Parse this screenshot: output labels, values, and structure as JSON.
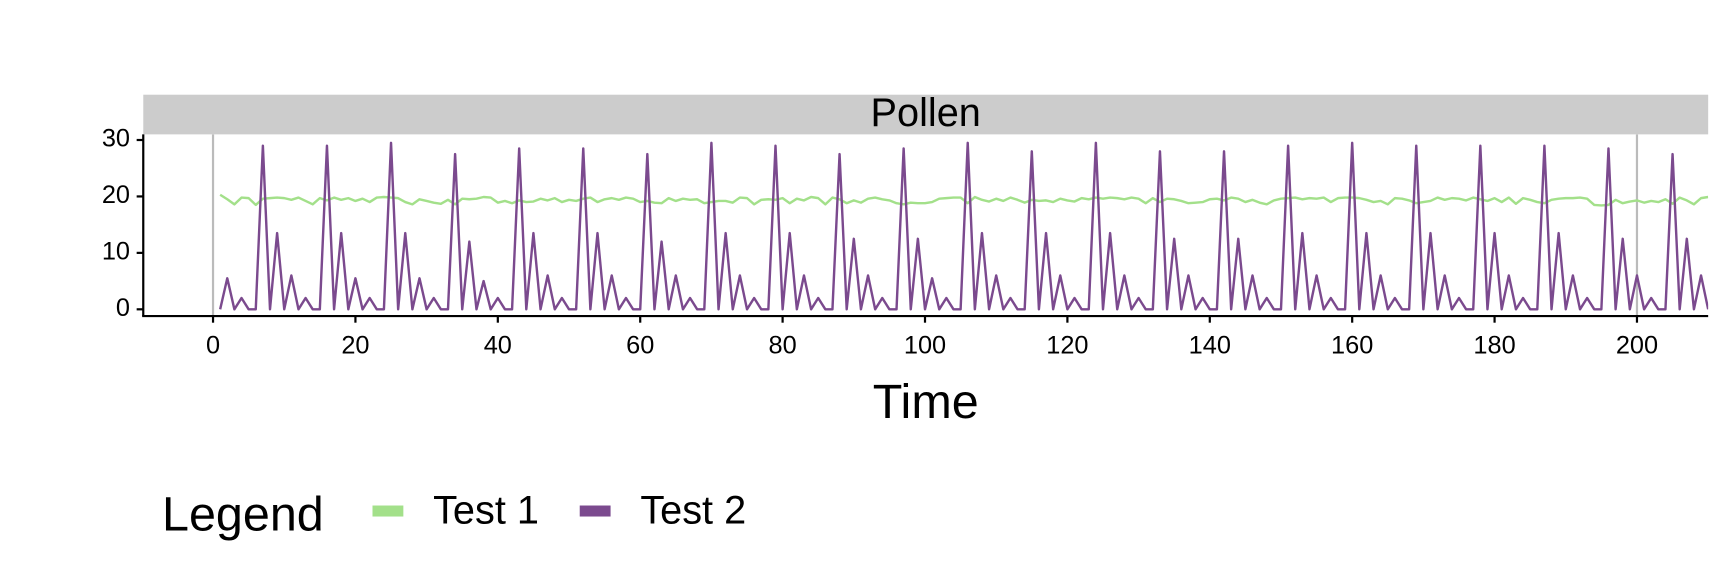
{
  "chart_data": {
    "type": "line",
    "strip_title": "Pollen",
    "xlabel": "Time",
    "legend_title": "Legend",
    "legend_position": "bottom",
    "x": [
      1,
      2,
      3,
      4,
      5,
      6,
      7,
      8,
      9,
      10,
      11,
      12,
      13,
      14,
      15,
      16,
      17,
      18,
      19,
      20,
      21,
      22,
      23,
      24,
      25,
      26,
      27,
      28,
      29,
      30,
      31,
      32,
      33,
      34,
      35,
      36,
      37,
      38,
      39,
      40,
      41,
      42,
      43,
      44,
      45,
      46,
      47,
      48,
      49,
      50,
      51,
      52,
      53,
      54,
      55,
      56,
      57,
      58,
      59,
      60,
      61,
      62,
      63,
      64,
      65,
      66,
      67,
      68,
      69,
      70,
      71,
      72,
      73,
      74,
      75,
      76,
      77,
      78,
      79,
      80,
      81,
      82,
      83,
      84,
      85,
      86,
      87,
      88,
      89,
      90,
      91,
      92,
      93,
      94,
      95,
      96,
      97,
      98,
      99,
      100,
      101,
      102,
      103,
      104,
      105,
      106,
      107,
      108,
      109,
      110,
      111,
      112,
      113,
      114,
      115,
      116,
      117,
      118,
      119,
      120,
      121,
      122,
      123,
      124,
      125,
      126,
      127,
      128,
      129,
      130,
      131,
      132,
      133,
      134,
      135,
      136,
      137,
      138,
      139,
      140,
      141,
      142,
      143,
      144,
      145,
      146,
      147,
      148,
      149,
      150,
      151,
      152,
      153,
      154,
      155,
      156,
      157,
      158,
      159,
      160,
      161,
      162,
      163,
      164,
      165,
      166,
      167,
      168,
      169,
      170,
      171,
      172,
      173,
      174,
      175,
      176,
      177,
      178,
      179,
      180,
      181,
      182,
      183,
      184,
      185,
      186,
      187,
      188,
      189,
      190,
      191,
      192,
      193,
      194,
      195,
      196,
      197,
      198,
      199,
      200,
      201,
      202,
      203,
      204,
      205,
      206,
      207,
      208,
      209,
      210
    ],
    "series": [
      {
        "name": "Test 1",
        "color": "#a3e08a",
        "values": [
          20.3,
          19.5,
          18.6,
          19.8,
          19.7,
          18.5,
          19.6,
          19.7,
          19.8,
          19.7,
          19.4,
          19.8,
          19.2,
          18.6,
          19.7,
          19.3,
          19.8,
          19.4,
          19.7,
          19.2,
          19.6,
          19.0,
          19.8,
          19.9,
          19.8,
          19.7,
          19.0,
          18.6,
          19.5,
          19.2,
          18.9,
          18.7,
          19.4,
          18.6,
          19.6,
          19.5,
          19.6,
          19.9,
          19.8,
          18.9,
          19.2,
          18.8,
          19.3,
          19.0,
          19.1,
          19.6,
          19.3,
          19.7,
          19.0,
          19.4,
          19.2,
          19.6,
          19.8,
          19.0,
          19.5,
          19.7,
          19.4,
          19.8,
          19.6,
          19.0,
          19.2,
          18.9,
          18.8,
          19.7,
          19.2,
          19.6,
          19.4,
          19.5,
          18.8,
          19.0,
          19.2,
          19.2,
          18.9,
          19.8,
          19.7,
          18.6,
          19.4,
          19.5,
          19.4,
          19.7,
          18.8,
          19.6,
          19.3,
          19.9,
          19.7,
          18.6,
          19.8,
          19.5,
          18.8,
          19.3,
          18.9,
          19.6,
          19.8,
          19.5,
          19.3,
          18.8,
          18.6,
          18.9,
          18.8,
          18.8,
          19.0,
          19.6,
          19.7,
          19.8,
          19.8,
          18.8,
          19.9,
          19.4,
          19.1,
          19.6,
          19.2,
          19.8,
          19.4,
          18.9,
          19.4,
          19.2,
          19.3,
          19.0,
          19.6,
          19.3,
          19.1,
          19.7,
          19.5,
          19.8,
          19.6,
          19.8,
          19.7,
          19.5,
          19.8,
          19.6,
          18.8,
          19.7,
          19.0,
          19.6,
          19.5,
          19.2,
          18.8,
          18.9,
          19.0,
          19.5,
          19.6,
          19.3,
          19.8,
          19.6,
          19.0,
          19.4,
          18.9,
          18.6,
          19.3,
          19.6,
          19.7,
          19.8,
          19.5,
          19.7,
          19.6,
          19.8,
          19.0,
          19.7,
          19.8,
          19.8,
          19.7,
          19.4,
          19.0,
          19.2,
          18.6,
          19.7,
          19.6,
          19.3,
          18.8,
          19.0,
          19.2,
          19.8,
          19.4,
          19.7,
          19.6,
          19.3,
          19.8,
          19.5,
          19.2,
          19.7,
          19.0,
          19.8,
          18.7,
          19.7,
          19.4,
          19.0,
          18.8,
          19.4,
          19.6,
          19.7,
          19.7,
          19.8,
          19.6,
          18.5,
          18.4,
          18.5,
          19.4,
          18.8,
          19.1,
          19.3,
          18.9,
          19.2,
          19.0,
          19.5,
          18.7,
          19.8,
          19.3,
          18.6,
          19.7,
          19.9
        ]
      },
      {
        "name": "Test 2",
        "color": "#7b4a8e",
        "values": [
          0,
          5.5,
          0,
          2,
          0,
          0,
          29,
          0,
          13.5,
          0,
          6,
          0,
          2,
          0,
          0,
          29,
          0,
          13.5,
          0,
          5.5,
          0,
          2,
          0,
          0,
          29.5,
          0,
          13.5,
          0,
          5.5,
          0,
          2,
          0,
          0,
          27.5,
          0,
          12,
          0,
          5,
          0,
          2,
          0,
          0,
          28.5,
          0,
          13.5,
          0,
          6,
          0,
          2,
          0,
          0,
          28.5,
          0,
          13.5,
          0,
          6,
          0,
          2,
          0,
          0,
          27.5,
          0,
          12,
          0,
          6,
          0,
          2,
          0,
          0,
          29.5,
          0,
          13.5,
          0,
          6,
          0,
          2,
          0,
          0,
          29,
          0,
          13.5,
          0,
          6,
          0,
          2,
          0,
          0,
          27.5,
          0,
          12.5,
          0,
          6,
          0,
          2,
          0,
          0,
          28.5,
          0,
          12.5,
          0,
          5.5,
          0,
          2,
          0,
          0,
          29.5,
          0,
          13.5,
          0,
          6,
          0,
          2,
          0,
          0,
          28,
          0,
          13.5,
          0,
          6,
          0,
          2,
          0,
          0,
          29.5,
          0,
          13.5,
          0,
          6,
          0,
          2,
          0,
          0,
          28,
          0,
          12.5,
          0,
          6,
          0,
          2,
          0,
          0,
          28,
          0,
          12.5,
          0,
          6,
          0,
          2,
          0,
          0,
          29,
          0,
          13.5,
          0,
          6,
          0,
          2,
          0,
          0,
          29.5,
          0,
          13.5,
          0,
          6,
          0,
          2,
          0,
          0,
          29,
          0,
          13.5,
          0,
          6,
          0,
          2,
          0,
          0,
          29,
          0,
          13.5,
          0,
          6,
          0,
          2,
          0,
          0,
          29,
          0,
          13.5,
          0,
          6,
          0,
          2,
          0,
          0,
          28.5,
          0,
          12.5,
          0,
          6,
          0,
          2,
          0,
          0,
          27.5,
          0,
          12.5,
          0,
          6,
          0
        ]
      }
    ],
    "vlines": [
      0,
      200
    ],
    "xlim": [
      -9.8,
      210
    ],
    "ylim": [
      -1.2,
      31
    ],
    "xticks": [
      0,
      20,
      40,
      60,
      80,
      100,
      120,
      140,
      160,
      180,
      200
    ],
    "yticks": [
      0,
      10,
      20,
      30
    ]
  }
}
